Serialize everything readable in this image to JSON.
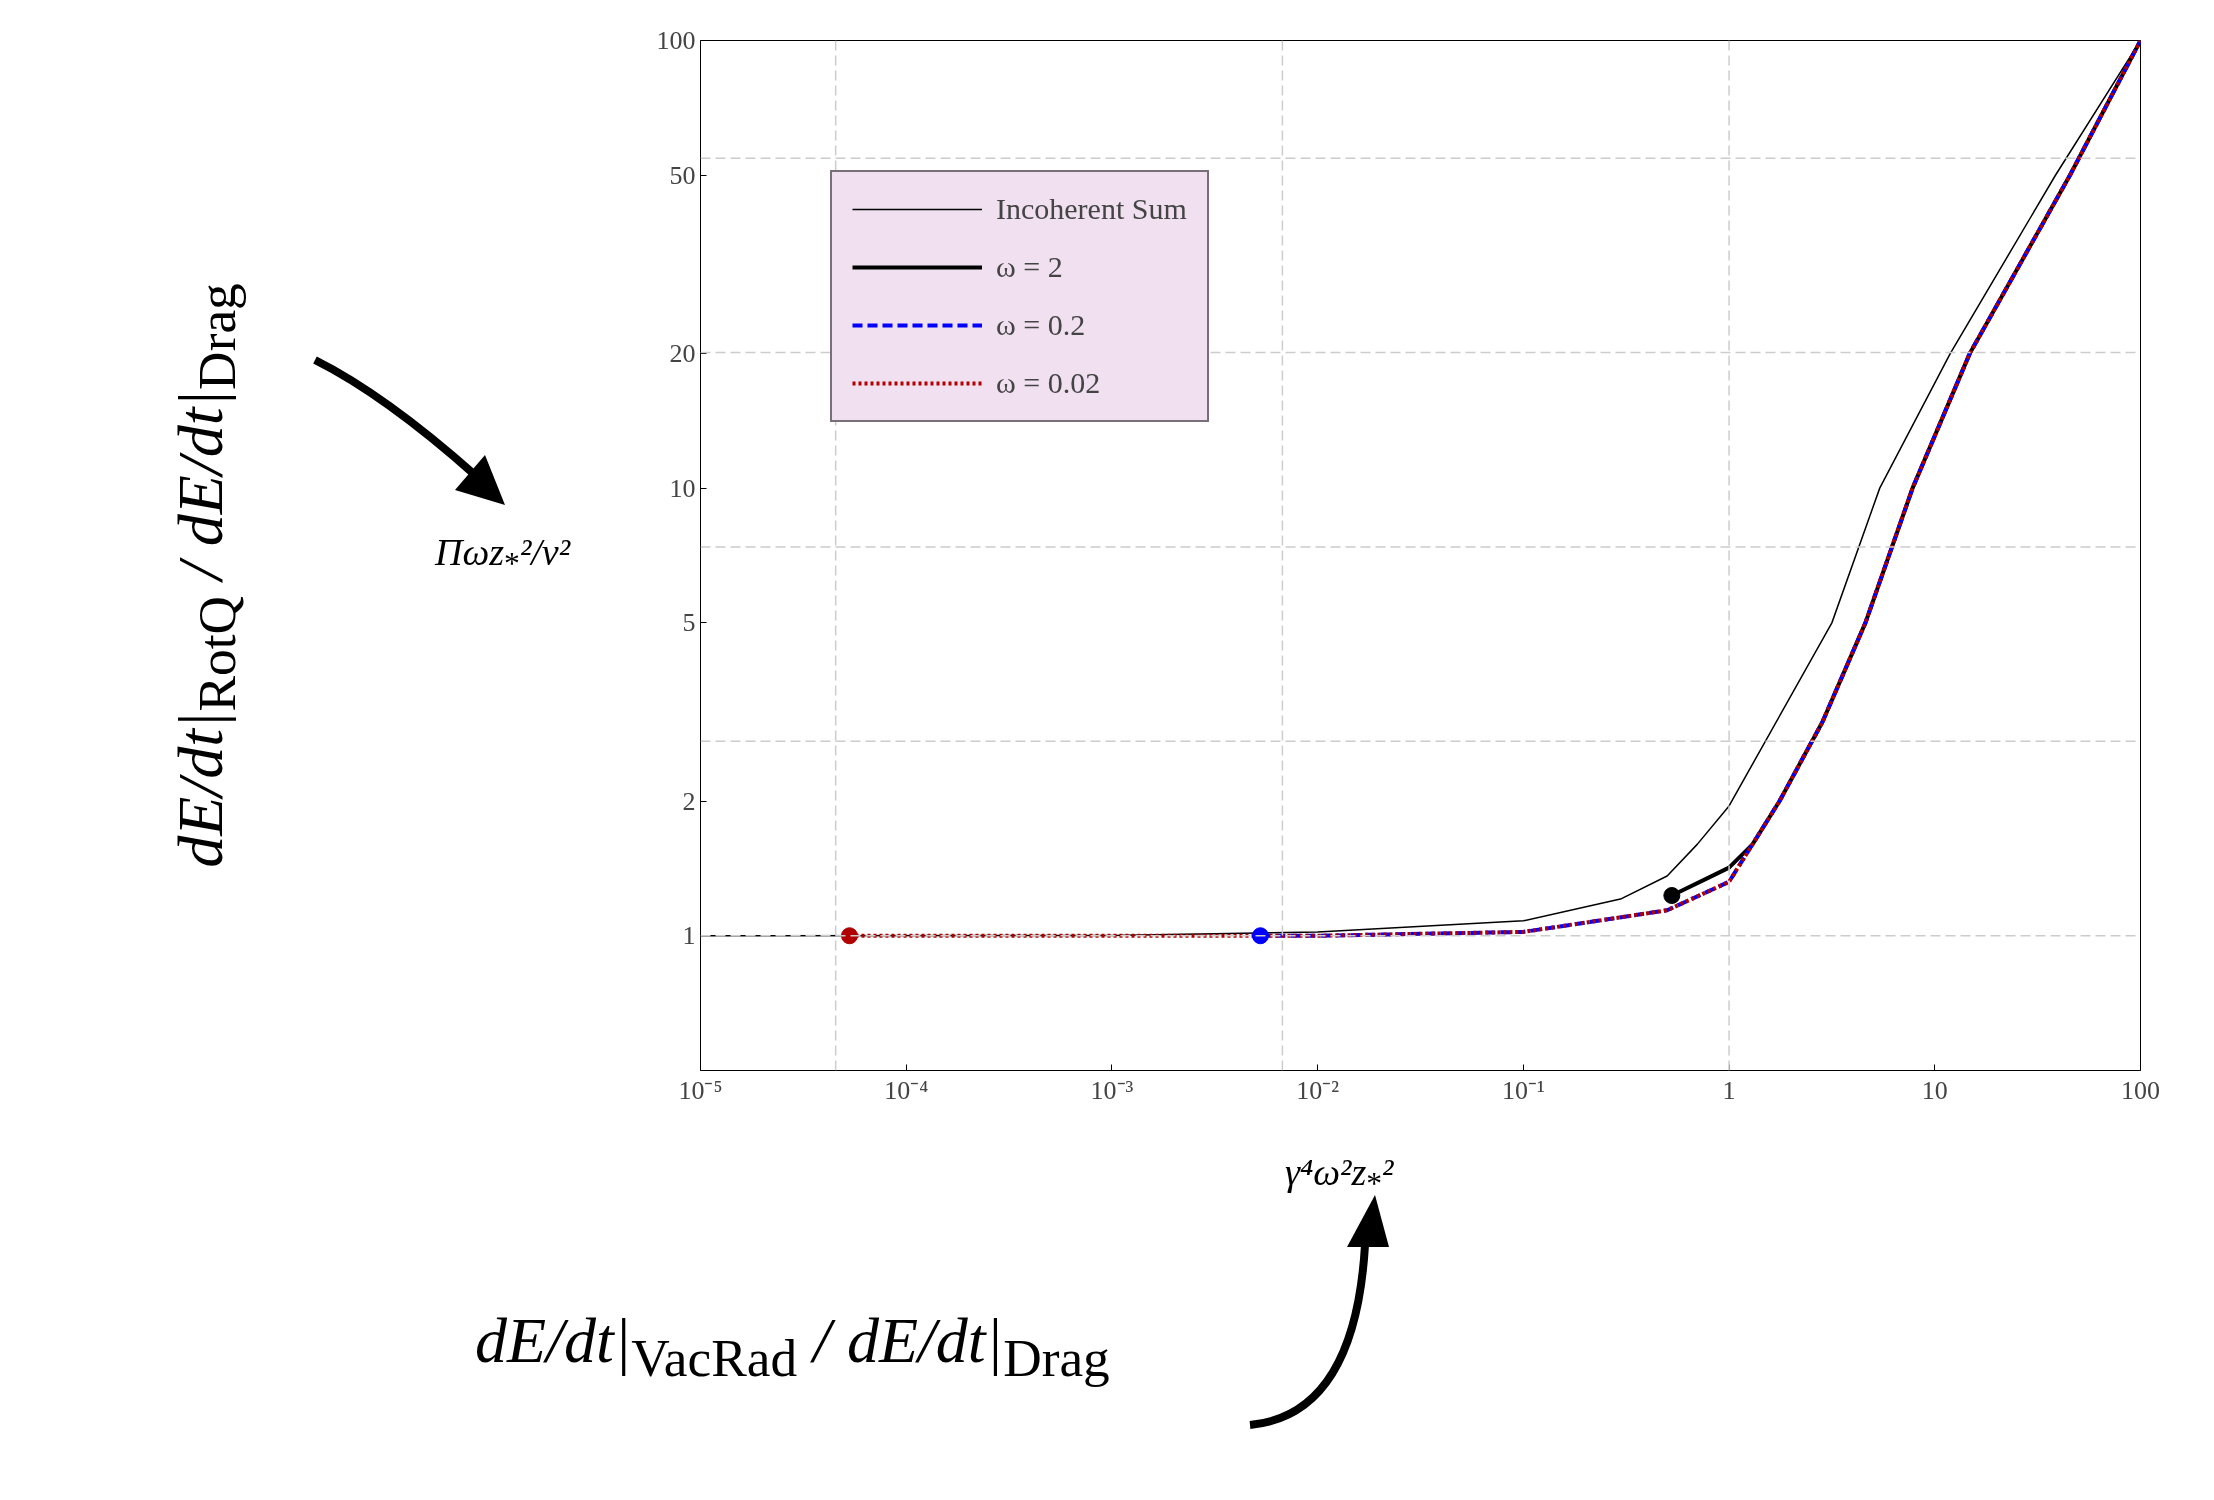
{
  "chart_data": {
    "type": "line",
    "xlabel": "γ⁴ω²z$_{*}$²",
    "ylabel": "Πωz$_{*}$²/v²",
    "annotations": [
      "dE/dt|$_{RotQ}$ / dE/dt|$_{Drag}$",
      "dE/dt|$_{VacRad}$ / dE/dt|$_{Drag}$"
    ],
    "log": "xy",
    "xlim": [
      1e-05,
      100
    ],
    "ylim": [
      0.5,
      100
    ],
    "xticks": [
      {
        "value": 1e-05,
        "label": "10⁻⁵"
      },
      {
        "value": 0.0001,
        "label": "10⁻⁴"
      },
      {
        "value": 0.001,
        "label": "10⁻³"
      },
      {
        "value": 0.01,
        "label": "10⁻²"
      },
      {
        "value": 0.1,
        "label": "10⁻¹"
      },
      1,
      10,
      100
    ],
    "yticks": [
      1,
      2,
      5,
      10,
      20,
      50,
      100
    ],
    "grid": false,
    "ref_lines": [
      {
        "axis": "x",
        "value": 4.54e-05,
        "color": "#cccccc",
        "line_style": "dashed"
      },
      {
        "axis": "x",
        "value": 0.00674,
        "color": "#cccccc",
        "line_style": "dashed"
      },
      {
        "axis": "x",
        "value": 1,
        "color": "#cccccc",
        "line_style": "dashed"
      },
      {
        "axis": "y",
        "value": 1,
        "color": "#cccccc",
        "line_style": "dashed"
      },
      {
        "axis": "y",
        "value": 2.718,
        "color": "#cccccc",
        "line_style": "dashed"
      },
      {
        "axis": "y",
        "value": 7.389,
        "color": "#cccccc",
        "line_style": "dashed"
      },
      {
        "axis": "y",
        "value": 20.09,
        "color": "#cccccc",
        "line_style": "dashed"
      },
      {
        "axis": "y",
        "value": 54.6,
        "color": "#cccccc",
        "line_style": "dashed"
      }
    ],
    "legend": "top left",
    "series": [
      {
        "name": "Incoherent Sum",
        "line_style": "solid",
        "color": "#000000",
        "x": [
          1e-05,
          0.001,
          0.01,
          0.1,
          0.3,
          0.5,
          0.7,
          1,
          3.16,
          5.4,
          11.9,
          38.6,
          100
        ],
        "values": [
          1,
          1.001,
          1.02,
          1.08,
          1.21,
          1.36,
          1.6,
          1.95,
          5,
          10,
          20,
          50,
          100
        ]
      },
      {
        "name": "ω = 2",
        "line_style": "solid",
        "color": "#000000",
        "x": [
          0.527,
          0.8,
          1,
          1.3,
          1.76,
          2.84,
          4.6,
          7.8,
          14.8,
          45.4,
          100
        ],
        "values": [
          1.23,
          1.35,
          1.42,
          1.6,
          2,
          3,
          5,
          10,
          20,
          50,
          100
        ]
      },
      {
        "name": "ω = 0.2",
        "line_style": "dashed",
        "color": "#0000ff",
        "x": [
          0.00527,
          0.01,
          0.1,
          0.3,
          0.5,
          1,
          1.76,
          2.84,
          4.6,
          7.8,
          14.8,
          45.4,
          100
        ],
        "values": [
          1,
          1,
          1.02,
          1.1,
          1.14,
          1.32,
          2,
          3,
          5,
          10,
          20,
          50,
          100
        ]
      },
      {
        "name": "ω = 0.02",
        "line_style": "dotted",
        "color": "#b00000",
        "x": [
          5.3e-05,
          0.001,
          0.00527,
          0.01,
          0.1,
          0.3,
          0.5,
          1,
          1.76,
          2.84,
          4.6,
          7.8,
          14.8,
          45.4,
          100
        ],
        "values": [
          1,
          1,
          1,
          1,
          1.02,
          1.1,
          1.14,
          1.32,
          2,
          3,
          5,
          10,
          20,
          50,
          100
        ]
      },
      {
        "type": "scatter",
        "marker": "circle",
        "color": "#000000",
        "x": [
          0.527
        ],
        "values": [
          1.23
        ]
      },
      {
        "type": "scatter",
        "marker": "circle",
        "color": "#0000ff",
        "x": [
          0.00527
        ],
        "values": [
          1
        ]
      },
      {
        "type": "scatter",
        "marker": "circle",
        "color": "#b00000",
        "x": [
          5.3e-05
        ],
        "values": [
          1
        ]
      }
    ]
  }
}
